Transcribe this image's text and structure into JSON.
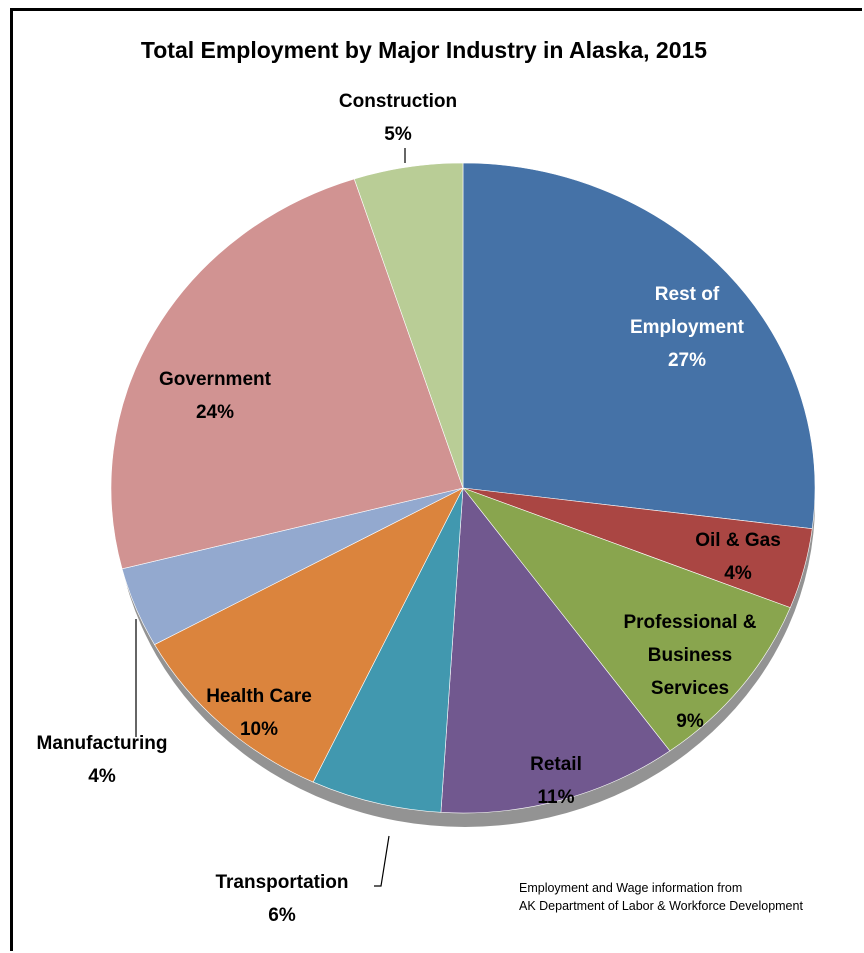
{
  "chart_data": {
    "type": "pie",
    "title": "Total Employment by Major Industry in Alaska, 2015",
    "slices": [
      {
        "label": "Rest of Employment",
        "label_lines": [
          "Rest of",
          "Employment"
        ],
        "pct_label": "27%",
        "value": 27,
        "color": "#4572A7",
        "label_color": "#ffffff"
      },
      {
        "label": "Oil & Gas",
        "label_lines": [
          "Oil & Gas"
        ],
        "pct_label": "4%",
        "value": 4,
        "color": "#AA4643",
        "label_color": "#000000"
      },
      {
        "label": "Professional & Business Services",
        "label_lines": [
          "Professional &",
          "Business",
          "Services"
        ],
        "pct_label": "9%",
        "value": 9,
        "color": "#89A54E",
        "label_color": "#000000"
      },
      {
        "label": "Retail",
        "label_lines": [
          "Retail"
        ],
        "pct_label": "11%",
        "value": 11,
        "color": "#71588F",
        "label_color": "#000000"
      },
      {
        "label": "Transportation",
        "label_lines": [
          "Transportation"
        ],
        "pct_label": "6%",
        "value": 6,
        "color": "#4198AF",
        "label_color": "#000000"
      },
      {
        "label": "Health Care",
        "label_lines": [
          "Health Care"
        ],
        "pct_label": "10%",
        "value": 10,
        "color": "#DB843D",
        "label_color": "#000000"
      },
      {
        "label": "Manufacturing",
        "label_lines": [
          "Manufacturing"
        ],
        "pct_label": "4%",
        "value": 4,
        "color": "#93A9CF",
        "label_color": "#000000"
      },
      {
        "label": "Government",
        "label_lines": [
          "Government"
        ],
        "pct_label": "24%",
        "value": 24,
        "color": "#D19392",
        "label_color": "#000000"
      },
      {
        "label": "Construction",
        "label_lines": [
          "Construction"
        ],
        "pct_label": "5%",
        "value": 5,
        "color": "#B9CD96",
        "label_color": "#000000"
      }
    ],
    "source_note": [
      "Employment and Wage information from",
      "AK Department of Labor & Workforce Development"
    ]
  }
}
